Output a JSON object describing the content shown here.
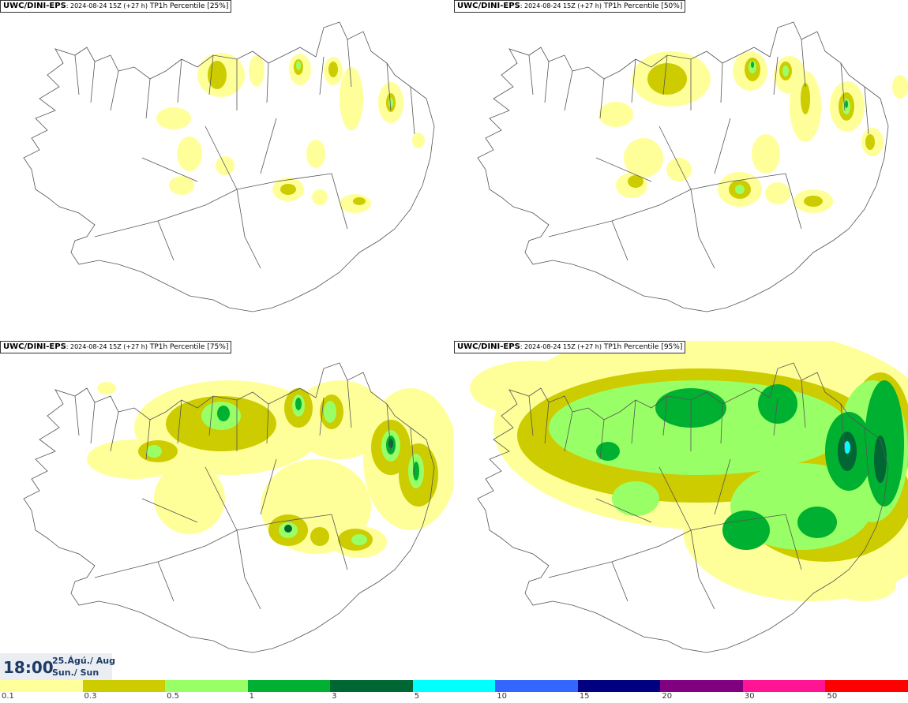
{
  "panels": [
    {
      "source": "UWC/DINI-EPS",
      "run": ": 2024-08-24 15Z (+27 h)",
      "field": " TP1h Percentile [25%]"
    },
    {
      "source": "UWC/DINI-EPS",
      "run": ": 2024-08-24 15Z (+27 h)",
      "field": " TP1h Percentile [50%]"
    },
    {
      "source": "UWC/DINI-EPS",
      "run": ": 2024-08-24 15Z (+27 h)",
      "field": " TP1h Percentile [75%]"
    },
    {
      "source": "UWC/DINI-EPS",
      "run": ": 2024-08-24 15Z (+27 h)",
      "field": " TP1h Percentile [95%]"
    }
  ],
  "valid_time": {
    "hour": "18:00",
    "date": "25.Ágú./ Aug",
    "day": "Sun./ Sun"
  },
  "legend": {
    "colors": [
      "#ffff99",
      "#cccc00",
      "#99ff66",
      "#00b030",
      "#006633",
      "#00ffff",
      "#3366ff",
      "#000080",
      "#800080",
      "#ff1493",
      "#ff0000"
    ],
    "ticks": [
      "0.1",
      "0.3",
      "0.5",
      "1",
      "3",
      "5",
      "10",
      "15",
      "20",
      "30",
      "50"
    ]
  }
}
